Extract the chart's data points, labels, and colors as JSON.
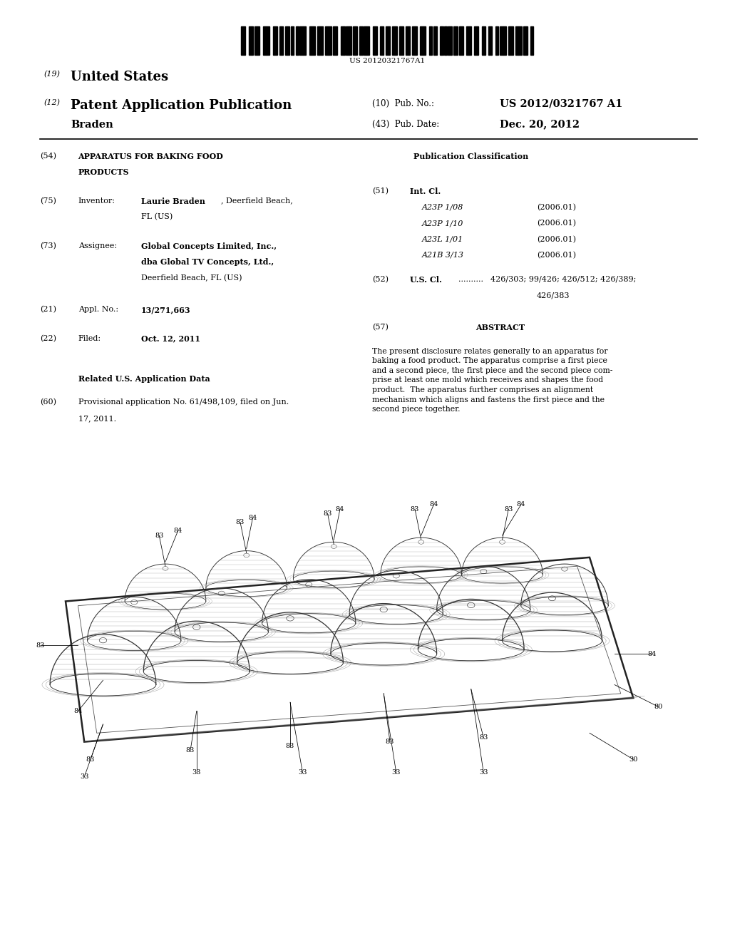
{
  "background_color": "#ffffff",
  "page_width": 10.24,
  "page_height": 13.2,
  "barcode_text": "US 20120321767A1",
  "header_line1_num": "(19)",
  "header_line1_text": "United States",
  "header_line2_num": "(12)",
  "header_line2_text": "Patent Application Publication",
  "header_line3_left": "Braden",
  "pub_no_value": "US 2012/0321767 A1",
  "pub_date_value": "Dec. 20, 2012",
  "int_cl_entries": [
    [
      "A23P 1/08",
      "(2006.01)"
    ],
    [
      "A23P 1/10",
      "(2006.01)"
    ],
    [
      "A23L 1/01",
      "(2006.01)"
    ],
    [
      "A21B 3/13",
      "(2006.01)"
    ]
  ],
  "abstract_text": "The present disclosure relates generally to an apparatus for\nbaking a food product. The apparatus comprise a first piece\nand a second piece, the first piece and the second piece com-\nprise at least one mold which receives and shapes the food\nproduct.  The apparatus further comprises an alignment\nmechanism which aligns and fastens the first piece and the\nsecond piece together."
}
